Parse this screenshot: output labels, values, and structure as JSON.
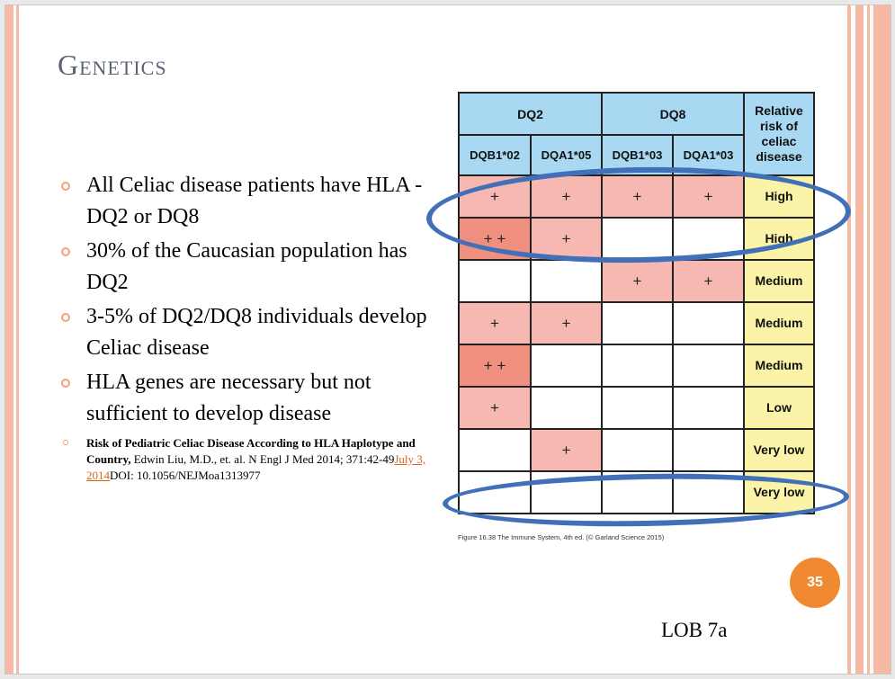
{
  "slide": {
    "title": "Genetics",
    "bullets": [
      "All Celiac disease patients have HLA - DQ2 or DQ8",
      "30% of the Caucasian population has DQ2",
      "3-5% of DQ2/DQ8 individuals develop Celiac disease",
      "HLA genes are necessary but not sufficient to develop disease"
    ],
    "reference": {
      "bold": "Risk of Pediatric Celiac Disease According to HLA Haplotype and Country,",
      "text": " Edwin Liu, M.D., et. al. N Engl J Med 2014; 371:42-49",
      "link": "July 3, 2014",
      "doi": "DOI: 10.1056/NEJMoa1313977"
    },
    "page_number": "35",
    "lob_label": "LOB 7a",
    "colors": {
      "accent": "#f08a32",
      "stripe": "#f7b9a3",
      "oval": "#4170b8",
      "header_blue": "#a9d8f2",
      "risk_yellow": "#fbf3a7"
    }
  },
  "table": {
    "group_headers": [
      "DQ2",
      "DQ8"
    ],
    "risk_header": "Relative risk of celiac disease",
    "sub_headers": [
      "DQB1*02",
      "DQA1*05",
      "DQB1*03",
      "DQA1*03"
    ],
    "rows": [
      {
        "cells": [
          "+",
          "+",
          "+",
          "+"
        ],
        "risk": "High"
      },
      {
        "cells": [
          "+ +",
          "+",
          "",
          ""
        ],
        "risk": "High"
      },
      {
        "cells": [
          "",
          "",
          "+",
          "+"
        ],
        "risk": "Medium"
      },
      {
        "cells": [
          "+",
          "+",
          "",
          ""
        ],
        "risk": "Medium"
      },
      {
        "cells": [
          "+ +",
          "",
          "",
          ""
        ],
        "risk": "Medium"
      },
      {
        "cells": [
          "+",
          "",
          "",
          ""
        ],
        "risk": "Low"
      },
      {
        "cells": [
          "",
          "+",
          "",
          ""
        ],
        "risk": "Very low"
      },
      {
        "cells": [
          "",
          "",
          "",
          ""
        ],
        "risk": "Very low"
      }
    ],
    "caption": "Figure 16.38 The Immune System, 4th ed. (© Garland Science 2015)"
  }
}
